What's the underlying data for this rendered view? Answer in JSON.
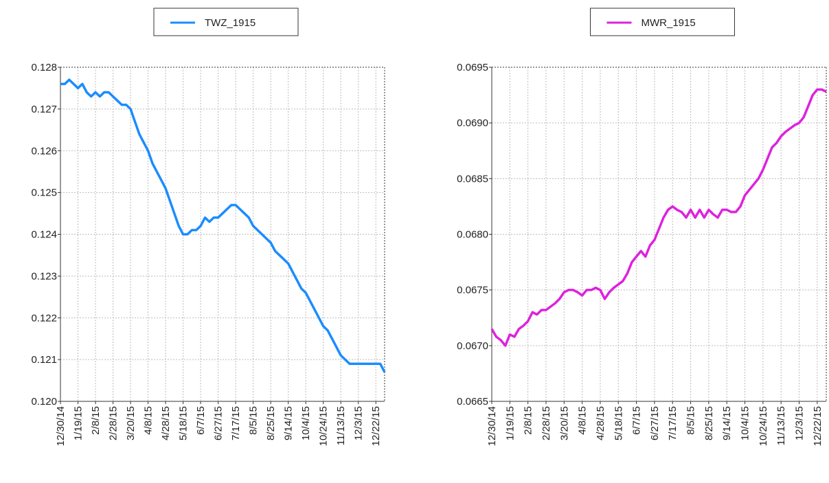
{
  "chart_data": [
    {
      "type": "line",
      "categories": [
        "12/30/14",
        null,
        null,
        null,
        "1/19/15",
        null,
        null,
        null,
        "2/8/15",
        null,
        null,
        null,
        "2/28/15",
        null,
        null,
        null,
        "3/20/15",
        null,
        null,
        null,
        "4/8/15",
        null,
        null,
        null,
        "4/28/15",
        null,
        null,
        null,
        "5/18/15",
        null,
        null,
        null,
        "6/7/15",
        null,
        null,
        null,
        "6/27/15",
        null,
        null,
        null,
        "7/17/15",
        null,
        null,
        null,
        "8/5/15",
        null,
        null,
        null,
        "8/25/15",
        null,
        null,
        null,
        "9/14/15",
        null,
        null,
        null,
        "10/4/15",
        null,
        null,
        null,
        "10/24/15",
        null,
        null,
        null,
        "11/13/15",
        null,
        null,
        null,
        "12/3/15",
        null,
        null,
        null,
        "12/22/15",
        null,
        null
      ],
      "series": [
        {
          "name": "TWZ_1915",
          "color": "#1a8cff",
          "values": [
            0.1276,
            0.1276,
            0.1277,
            0.1276,
            0.1275,
            0.1276,
            0.1274,
            0.1273,
            0.1274,
            0.1273,
            0.1274,
            0.1274,
            0.1273,
            0.1272,
            0.1271,
            0.1271,
            0.127,
            0.1267,
            0.1264,
            0.1262,
            0.126,
            0.1257,
            0.1255,
            0.1253,
            0.1251,
            0.1248,
            0.1245,
            0.1242,
            0.124,
            0.124,
            0.1241,
            0.1241,
            0.1242,
            0.1244,
            0.1243,
            0.1244,
            0.1244,
            0.1245,
            0.1246,
            0.1247,
            0.1247,
            0.1246,
            0.1245,
            0.1244,
            0.1242,
            0.1241,
            0.124,
            0.1239,
            0.1238,
            0.1236,
            0.1235,
            0.1234,
            0.1233,
            0.1231,
            0.1229,
            0.1227,
            0.1226,
            0.1224,
            0.1222,
            0.122,
            0.1218,
            0.1217,
            0.1215,
            0.1213,
            0.1211,
            0.121,
            0.1209,
            0.1209,
            0.1209,
            0.1209,
            0.1209,
            0.1209,
            0.1209,
            0.1209,
            0.1207
          ]
        }
      ],
      "ylim": [
        0.12,
        0.128
      ],
      "yticks": [
        {
          "value": 0.12,
          "label": "0.120"
        },
        0.121,
        0.122,
        0.123,
        0.124,
        0.125,
        0.126,
        0.127,
        0.128
      ],
      "grid": true,
      "legend": "top"
    },
    {
      "type": "line",
      "categories": [
        "12/30/14",
        null,
        null,
        null,
        "1/19/15",
        null,
        null,
        null,
        "2/8/15",
        null,
        null,
        null,
        "2/28/15",
        null,
        null,
        null,
        "3/20/15",
        null,
        null,
        null,
        "4/8/15",
        null,
        null,
        null,
        "4/28/15",
        null,
        null,
        null,
        "5/18/15",
        null,
        null,
        null,
        "6/7/15",
        null,
        null,
        null,
        "6/27/15",
        null,
        null,
        null,
        "7/17/15",
        null,
        null,
        null,
        "8/5/15",
        null,
        null,
        null,
        "8/25/15",
        null,
        null,
        null,
        "9/14/15",
        null,
        null,
        null,
        "10/4/15",
        null,
        null,
        null,
        "10/24/15",
        null,
        null,
        null,
        "11/13/15",
        null,
        null,
        null,
        "12/3/15",
        null,
        null,
        null,
        "12/22/15",
        null,
        null
      ],
      "series": [
        {
          "name": "MWR_1915",
          "color": "#dd22dd",
          "values": [
            0.06715,
            0.06708,
            0.06705,
            0.067,
            0.0671,
            0.06708,
            0.06715,
            0.06718,
            0.06722,
            0.0673,
            0.06728,
            0.06732,
            0.06732,
            0.06735,
            0.06738,
            0.06742,
            0.06748,
            0.0675,
            0.0675,
            0.06748,
            0.06745,
            0.0675,
            0.0675,
            0.06752,
            0.0675,
            0.06742,
            0.06748,
            0.06752,
            0.06755,
            0.06758,
            0.06765,
            0.06775,
            0.0678,
            0.06785,
            0.0678,
            0.0679,
            0.06795,
            0.06805,
            0.06815,
            0.06822,
            0.06825,
            0.06822,
            0.0682,
            0.06815,
            0.06822,
            0.06815,
            0.06822,
            0.06815,
            0.06822,
            0.06818,
            0.06815,
            0.06822,
            0.06822,
            0.0682,
            0.0682,
            0.06825,
            0.06835,
            0.0684,
            0.06845,
            0.0685,
            0.06858,
            0.06868,
            0.06878,
            0.06882,
            0.06888,
            0.06892,
            0.06895,
            0.06898,
            0.069,
            0.06905,
            0.06915,
            0.06925,
            0.0693,
            0.0693,
            0.06928
          ]
        }
      ],
      "ylim": [
        0.0665,
        0.0695
      ],
      "yticks": [
        0.0665,
        {
          "value": 0.067,
          "label": "0.0670"
        },
        0.0675,
        {
          "value": 0.068,
          "label": "0.0680"
        },
        0.0685,
        {
          "value": 0.069,
          "label": "0.0690"
        },
        0.0695
      ],
      "grid": true,
      "legend": "top"
    }
  ]
}
